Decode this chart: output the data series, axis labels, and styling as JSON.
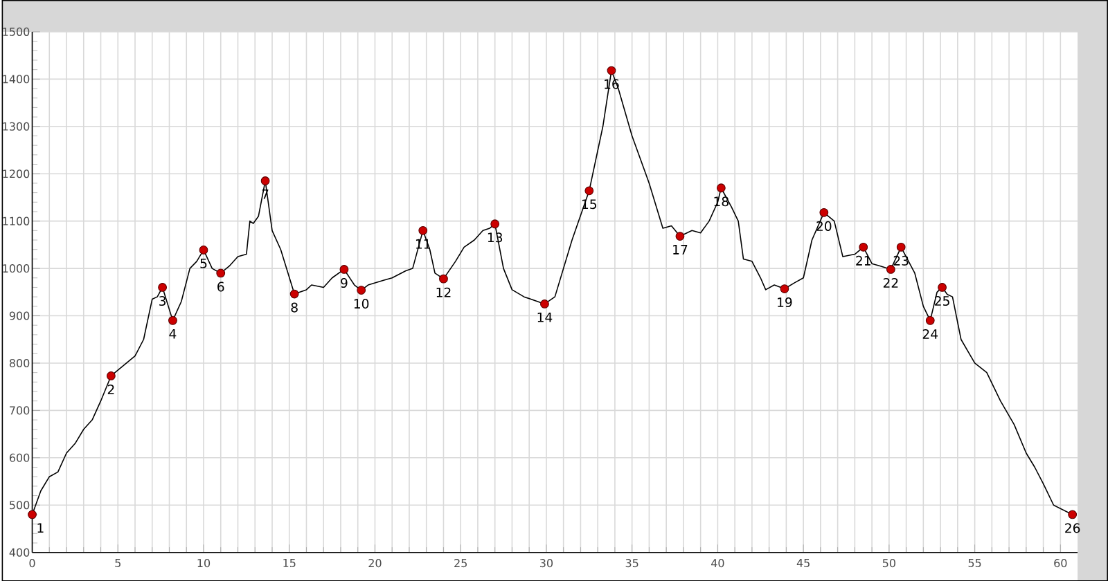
{
  "chart_data": {
    "type": "line",
    "xlim": [
      0,
      61
    ],
    "ylim": [
      400,
      1500
    ],
    "xticks": [
      0,
      5,
      10,
      15,
      20,
      25,
      30,
      35,
      40,
      45,
      50,
      55,
      60
    ],
    "yticks": [
      400,
      500,
      600,
      700,
      800,
      900,
      1000,
      1100,
      1200,
      1300,
      1400,
      1500
    ],
    "grid": true,
    "series": [
      {
        "color": "#000000",
        "line_style": "solid",
        "x": [
          0,
          0.5,
          1.0,
          1.5,
          2.0,
          2.5,
          3.0,
          3.5,
          4.0,
          4.6,
          5.0,
          5.5,
          6.0,
          6.5,
          7.0,
          7.3,
          7.6,
          8.2,
          8.7,
          9.2,
          9.6,
          10.0,
          10.5,
          11.0,
          11.5,
          12.0,
          12.5,
          12.7,
          12.9,
          13.2,
          13.6,
          14.0,
          14.5,
          15.3,
          16.0,
          16.3,
          17.0,
          17.5,
          18.2,
          18.8,
          19.2,
          19.6,
          20.5,
          21.0,
          21.8,
          22.2,
          22.8,
          23.2,
          23.5,
          24.0,
          24.7,
          25.2,
          25.8,
          26.3,
          26.7,
          27.0,
          27.5,
          28.0,
          28.7,
          29.9,
          30.5,
          31.5,
          32.5,
          33.3,
          33.8,
          34.2,
          35.0,
          36.0,
          36.8,
          37.3,
          37.8,
          38.5,
          39.0,
          39.5,
          40.0,
          40.2,
          40.8,
          41.2,
          41.5,
          42.0,
          42.5,
          42.8,
          43.3,
          43.9,
          44.5,
          45.0,
          45.5,
          46.2,
          46.8,
          47.3,
          48.0,
          48.5,
          49.0,
          49.5,
          50.1,
          50.7,
          51.5,
          52.0,
          52.4,
          52.8,
          53.1,
          53.4,
          53.7,
          54.2,
          55.0,
          55.7,
          56.5,
          57.3,
          58.0,
          58.5,
          59.0,
          59.6,
          60.7
        ],
        "values": [
          480,
          530,
          560,
          570,
          610,
          630,
          660,
          680,
          720,
          773,
          785,
          800,
          815,
          850,
          935,
          940,
          960,
          890,
          930,
          1000,
          1015,
          1039,
          1000,
          990,
          1005,
          1025,
          1030,
          1100,
          1095,
          1110,
          1185,
          1080,
          1040,
          946,
          955,
          965,
          960,
          980,
          998,
          965,
          954,
          965,
          975,
          980,
          995,
          1000,
          1080,
          1040,
          990,
          978,
          1015,
          1045,
          1060,
          1080,
          1085,
          1094,
          1000,
          955,
          940,
          925,
          940,
          1060,
          1164,
          1300,
          1418,
          1380,
          1280,
          1180,
          1085,
          1090,
          1068,
          1080,
          1075,
          1100,
          1140,
          1170,
          1130,
          1100,
          1020,
          1015,
          980,
          955,
          965,
          957,
          970,
          980,
          1060,
          1118,
          1100,
          1025,
          1030,
          1045,
          1010,
          1005,
          998,
          1045,
          990,
          920,
          890,
          950,
          960,
          945,
          940,
          850,
          800,
          780,
          720,
          670,
          610,
          580,
          545,
          500,
          480
        ]
      },
      {
        "type": "scatter",
        "color": "#cc0000",
        "marker": "circle",
        "x": [
          0,
          4.6,
          7.6,
          8.2,
          10.0,
          11.0,
          13.6,
          15.3,
          18.2,
          19.2,
          22.8,
          24.0,
          27.0,
          29.9,
          32.5,
          33.8,
          37.8,
          40.2,
          43.9,
          46.2,
          48.5,
          50.1,
          50.7,
          52.4,
          53.1,
          60.7
        ],
        "values": [
          480,
          773,
          960,
          890,
          1039,
          990,
          1185,
          946,
          998,
          954,
          1080,
          978,
          1094,
          925,
          1164,
          1418,
          1068,
          1170,
          957,
          1118,
          1045,
          998,
          1045,
          890,
          960,
          480
        ]
      }
    ],
    "annotations": [
      {
        "text": "1",
        "x": 0,
        "y": 480
      },
      {
        "text": "2",
        "x": 4.6,
        "y": 773
      },
      {
        "text": "3",
        "x": 7.6,
        "y": 960
      },
      {
        "text": "4",
        "x": 8.2,
        "y": 890
      },
      {
        "text": "5",
        "x": 10.0,
        "y": 1039
      },
      {
        "text": "6",
        "x": 11.0,
        "y": 990
      },
      {
        "text": "7",
        "x": 13.6,
        "y": 1185
      },
      {
        "text": "8",
        "x": 15.3,
        "y": 946
      },
      {
        "text": "9",
        "x": 18.2,
        "y": 998
      },
      {
        "text": "10",
        "x": 19.2,
        "y": 954
      },
      {
        "text": "11",
        "x": 22.8,
        "y": 1080
      },
      {
        "text": "12",
        "x": 24.0,
        "y": 978
      },
      {
        "text": "13",
        "x": 27.0,
        "y": 1094
      },
      {
        "text": "14",
        "x": 29.9,
        "y": 925
      },
      {
        "text": "15",
        "x": 32.5,
        "y": 1164
      },
      {
        "text": "16",
        "x": 33.8,
        "y": 1418
      },
      {
        "text": "17",
        "x": 37.8,
        "y": 1068
      },
      {
        "text": "18",
        "x": 40.2,
        "y": 1170
      },
      {
        "text": "19",
        "x": 43.9,
        "y": 957
      },
      {
        "text": "20",
        "x": 46.2,
        "y": 1118
      },
      {
        "text": "21",
        "x": 48.5,
        "y": 1045
      },
      {
        "text": "22",
        "x": 50.1,
        "y": 998
      },
      {
        "text": "23",
        "x": 50.7,
        "y": 1045
      },
      {
        "text": "24",
        "x": 52.4,
        "y": 890
      },
      {
        "text": "25",
        "x": 53.1,
        "y": 960
      },
      {
        "text": "26",
        "x": 60.7,
        "y": 480
      }
    ]
  }
}
